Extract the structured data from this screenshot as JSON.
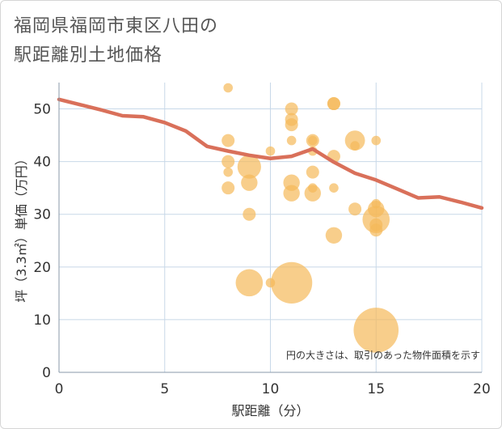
{
  "title_line1": "福岡県福岡市東区八田の",
  "title_line2": "駅距離別土地価格",
  "chart_data": {
    "type": "scatter",
    "title": "福岡県福岡市東区八田の駅距離別土地価格",
    "xlabel": "駅距離（分）",
    "ylabel": "坪（3.3㎡）単価（万円）",
    "xlim": [
      0,
      20
    ],
    "ylim": [
      0,
      55
    ],
    "xticks": [
      0,
      5,
      10,
      15,
      20
    ],
    "yticks": [
      0,
      10,
      20,
      30,
      40,
      50
    ],
    "grid": true,
    "note": "円の大きさは、取引のあった物件面積を示す",
    "colors": {
      "bubble": "#f5b95a",
      "trend": "#d9705a",
      "grid": "#c8d8e8"
    },
    "scatter": [
      {
        "x": 8,
        "y": 54,
        "size": 1
      },
      {
        "x": 8,
        "y": 44,
        "size": 2
      },
      {
        "x": 8,
        "y": 40,
        "size": 2
      },
      {
        "x": 8,
        "y": 38,
        "size": 1
      },
      {
        "x": 8,
        "y": 35,
        "size": 2
      },
      {
        "x": 9,
        "y": 39,
        "size": 5
      },
      {
        "x": 9,
        "y": 36,
        "size": 3
      },
      {
        "x": 9,
        "y": 30,
        "size": 2
      },
      {
        "x": 9,
        "y": 17,
        "size": 6
      },
      {
        "x": 10,
        "y": 42,
        "size": 1
      },
      {
        "x": 10,
        "y": 17,
        "size": 1
      },
      {
        "x": 11,
        "y": 50,
        "size": 2
      },
      {
        "x": 11,
        "y": 48,
        "size": 2
      },
      {
        "x": 11,
        "y": 47,
        "size": 2
      },
      {
        "x": 11,
        "y": 44,
        "size": 1
      },
      {
        "x": 11,
        "y": 36,
        "size": 3
      },
      {
        "x": 11,
        "y": 34,
        "size": 3
      },
      {
        "x": 11,
        "y": 17,
        "size": 10
      },
      {
        "x": 12,
        "y": 44,
        "size": 2
      },
      {
        "x": 12,
        "y": 44,
        "size": 1
      },
      {
        "x": 12,
        "y": 42,
        "size": 1
      },
      {
        "x": 12,
        "y": 38,
        "size": 2
      },
      {
        "x": 12,
        "y": 35,
        "size": 1
      },
      {
        "x": 12,
        "y": 34,
        "size": 3
      },
      {
        "x": 13,
        "y": 51,
        "size": 2
      },
      {
        "x": 13,
        "y": 51,
        "size": 2
      },
      {
        "x": 13,
        "y": 41,
        "size": 2
      },
      {
        "x": 13,
        "y": 35,
        "size": 1
      },
      {
        "x": 13,
        "y": 26,
        "size": 3
      },
      {
        "x": 14,
        "y": 44,
        "size": 4
      },
      {
        "x": 14,
        "y": 43,
        "size": 1
      },
      {
        "x": 14,
        "y": 31,
        "size": 2
      },
      {
        "x": 15,
        "y": 44,
        "size": 1
      },
      {
        "x": 15,
        "y": 32,
        "size": 1
      },
      {
        "x": 15,
        "y": 31,
        "size": 3
      },
      {
        "x": 15,
        "y": 29,
        "size": 6
      },
      {
        "x": 15,
        "y": 28,
        "size": 2
      },
      {
        "x": 15,
        "y": 27,
        "size": 2
      },
      {
        "x": 15,
        "y": 8,
        "size": 11
      }
    ],
    "trend": {
      "x": [
        0,
        1,
        2,
        3,
        4,
        5,
        6,
        7,
        8,
        9,
        10,
        11,
        12,
        13,
        14,
        15,
        16,
        17,
        18,
        19,
        20
      ],
      "y": [
        51.8,
        50.8,
        49.8,
        48.7,
        48.5,
        47.4,
        45.8,
        42.9,
        42.0,
        41.2,
        40.6,
        41.0,
        42.4,
        39.9,
        37.8,
        36.5,
        34.8,
        33.1,
        33.3,
        32.3,
        31.2
      ]
    }
  }
}
